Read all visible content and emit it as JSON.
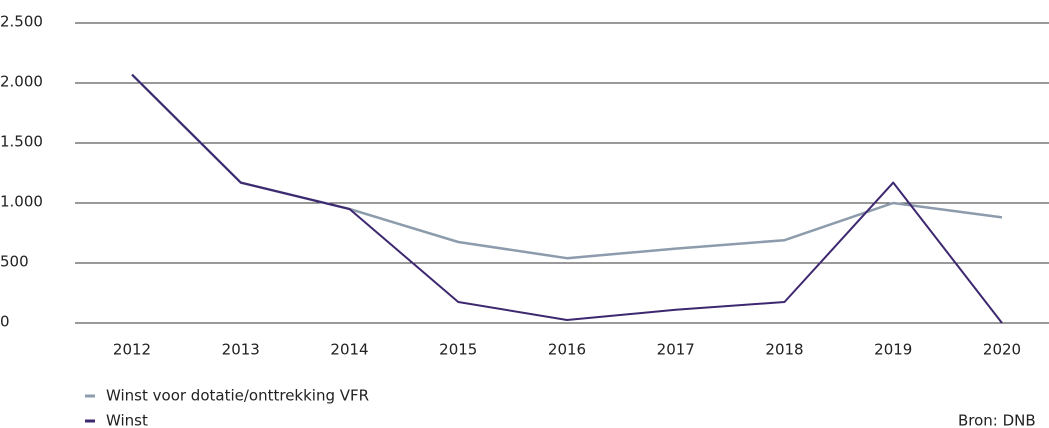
{
  "chart_data": {
    "type": "line",
    "categories": [
      "2012",
      "2013",
      "2014",
      "2015",
      "2016",
      "2017",
      "2018",
      "2019",
      "2020"
    ],
    "series": [
      {
        "name": "Winst voor dotatie/onttrekking VFR",
        "color": "#8c9cac",
        "values": [
          2070,
          1170,
          950,
          675,
          540,
          620,
          690,
          1000,
          880
        ]
      },
      {
        "name": "Winst",
        "color": "#3d2870",
        "values": [
          2070,
          1170,
          950,
          175,
          25,
          110,
          175,
          1170,
          0
        ]
      }
    ],
    "ylim": [
      0,
      2500
    ],
    "yticks": [
      0,
      500,
      {
        "value": 1000,
        "label": "1.000"
      },
      {
        "value": 1500,
        "label": "1.500"
      },
      {
        "value": 2000,
        "label": "2.000"
      },
      {
        "value": 2500,
        "label": "2.500"
      }
    ],
    "grid": true,
    "legend": "bottom-left",
    "source": "Bron: DNB"
  }
}
